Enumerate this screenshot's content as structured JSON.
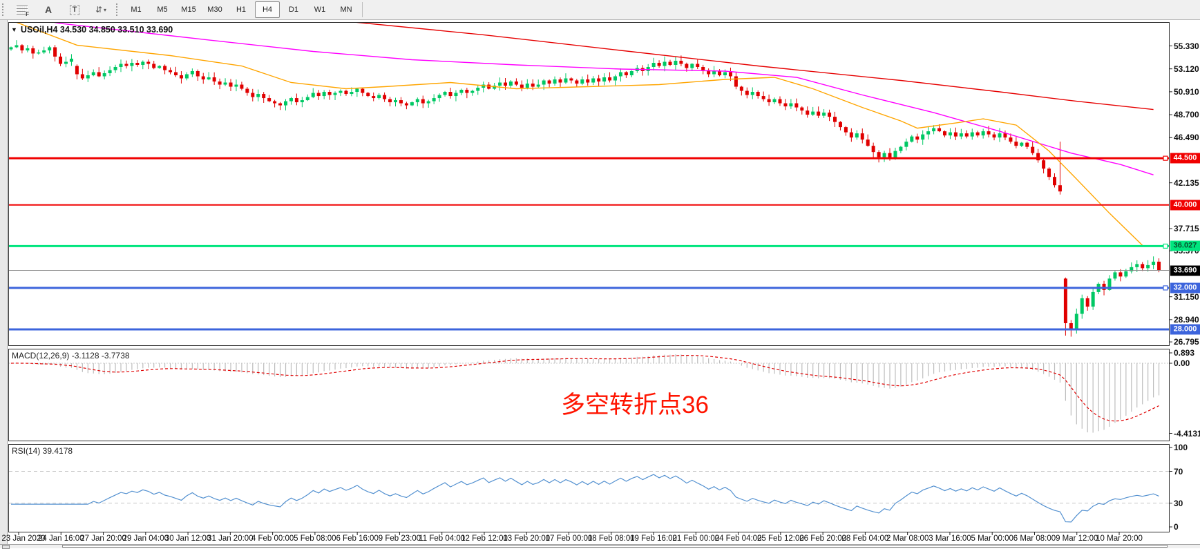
{
  "toolbar": {
    "icons": [
      {
        "name": "templates-grid-icon",
        "type": "grid",
        "label": "F"
      },
      {
        "name": "font-tool-icon",
        "type": "letter",
        "label": "A"
      },
      {
        "name": "text-tool-icon",
        "type": "boxed",
        "label": "T"
      },
      {
        "name": "arrange-windows-icon",
        "type": "arrows",
        "label": "⇵"
      }
    ],
    "timeframes": [
      "M1",
      "M5",
      "M15",
      "M30",
      "H1",
      "H4",
      "D1",
      "W1",
      "MN"
    ],
    "active_timeframe": "H4"
  },
  "chart_data": {
    "type": "candlestick+indicators",
    "symbol": "USOil",
    "timeframe": "H4",
    "title": "USOil,H4   34.530 34.850 33.510 33.690",
    "ohlc_display": {
      "open": "34.530",
      "high": "34.850",
      "low": "33.510",
      "close": "33.690"
    },
    "annotation": {
      "text": "多空转折点36",
      "color": "#ff1400"
    },
    "colors": {
      "up": "#00c864",
      "down": "#e00000",
      "ma_red": "#e60000",
      "ma_magenta": "#ff00ff",
      "ma_orange": "#ffa500",
      "line_red": "#f00000",
      "line_green": "#00e57e",
      "line_blue": "#3c64dc",
      "rsi_line": "#5290d0",
      "macd_hist": "#bdbdbd",
      "macd_signal": "#e00000",
      "current_price_bg": "#000000"
    },
    "price_axis": {
      "ticks": [
        {
          "label": "55.330",
          "value": 55.33
        },
        {
          "label": "53.120",
          "value": 53.12
        },
        {
          "label": "50.910",
          "value": 50.91
        },
        {
          "label": "48.700",
          "value": 48.7
        },
        {
          "label": "46.490",
          "value": 46.49
        },
        {
          "label": "42.135",
          "value": 42.135
        },
        {
          "label": "37.715",
          "value": 37.715
        },
        {
          "label": "35.570",
          "value": 35.57
        },
        {
          "label": "31.150",
          "value": 31.15
        },
        {
          "label": "28.940",
          "value": 28.94
        },
        {
          "label": "26.795",
          "value": 26.795
        }
      ]
    },
    "horizontal_lines": [
      {
        "label": "44.500",
        "value": 44.5,
        "color": "#f00000",
        "text": "#ffffff",
        "width": 3,
        "handle": true
      },
      {
        "label": "40.000",
        "value": 40.0,
        "color": "#f00000",
        "text": "#ffffff",
        "width": 2,
        "handle": false
      },
      {
        "label": "36.027",
        "value": 36.027,
        "color": "#00e57e",
        "text": "#0a4d2e",
        "width": 3,
        "handle": true
      },
      {
        "label": "32.000",
        "value": 32.0,
        "color": "#3c64dc",
        "text": "#ffffff",
        "width": 3,
        "handle": true
      },
      {
        "label": "28.000",
        "value": 28.0,
        "color": "#3c64dc",
        "text": "#ffffff",
        "width": 3,
        "handle": false
      }
    ],
    "current_price": {
      "label": "33.690",
      "value": 33.69
    },
    "closes": [
      55.2,
      55.4,
      54.9,
      55.1,
      54.6,
      54.7,
      54.9,
      55.2,
      54.3,
      53.6,
      53.8,
      54.1,
      52.6,
      52.2,
      52.5,
      52.8,
      52.4,
      52.7,
      53.0,
      53.3,
      53.6,
      53.4,
      53.7,
      53.5,
      53.8,
      53.6,
      53.2,
      53.4,
      53.0,
      52.8,
      52.5,
      52.2,
      52.6,
      52.9,
      52.4,
      52.1,
      52.3,
      51.9,
      51.6,
      51.8,
      51.4,
      51.6,
      51.2,
      50.8,
      50.4,
      50.7,
      50.3,
      50.0,
      49.8,
      49.6,
      50.0,
      50.3,
      49.9,
      50.1,
      50.4,
      50.8,
      50.5,
      50.9,
      50.6,
      50.8,
      51.0,
      50.7,
      50.9,
      51.2,
      50.8,
      50.5,
      50.3,
      50.6,
      50.2,
      49.9,
      50.1,
      49.8,
      49.6,
      49.9,
      50.2,
      49.8,
      50.0,
      50.3,
      50.6,
      50.9,
      50.5,
      50.8,
      51.1,
      50.8,
      51.0,
      51.3,
      51.6,
      51.2,
      51.5,
      51.8,
      51.5,
      51.9,
      51.6,
      51.3,
      51.7,
      51.4,
      51.6,
      52.0,
      51.7,
      52.1,
      51.8,
      52.2,
      52.0,
      51.7,
      52.1,
      51.8,
      52.2,
      51.9,
      52.3,
      52.0,
      52.4,
      52.8,
      52.5,
      52.9,
      53.2,
      52.9,
      53.3,
      53.7,
      53.4,
      53.8,
      53.5,
      53.9,
      53.6,
      53.2,
      53.6,
      53.3,
      53.0,
      52.6,
      52.9,
      52.5,
      52.8,
      52.4,
      51.4,
      51.0,
      50.6,
      50.9,
      50.5,
      50.2,
      49.9,
      50.2,
      49.8,
      49.5,
      49.8,
      49.4,
      49.1,
      48.7,
      49.0,
      48.6,
      48.9,
      48.5,
      48.0,
      47.5,
      47.0,
      46.5,
      46.9,
      46.3,
      45.7,
      45.1,
      44.6,
      45.0,
      44.5,
      45.2,
      45.6,
      46.1,
      46.6,
      46.3,
      46.8,
      47.1,
      47.4,
      47.1,
      46.7,
      47.0,
      46.6,
      46.9,
      46.6,
      47.0,
      46.7,
      47.1,
      46.8,
      46.5,
      46.9,
      46.5,
      46.1,
      45.7,
      46.0,
      45.6,
      45.0,
      44.3,
      43.5,
      42.7,
      41.9,
      41.3,
      28.6,
      27.9,
      29.5,
      31.0,
      30.2,
      31.6,
      32.4,
      31.8,
      32.9,
      33.5,
      33.1,
      33.6,
      34.0,
      34.3,
      33.9,
      34.2,
      34.53,
      33.69
    ],
    "last_ohlc": [
      34.53,
      34.85,
      33.51,
      33.69
    ],
    "open_overrides": {
      "0": 55.0,
      "12": 53.4,
      "192": 32.9
    },
    "wick_overrides": {
      "191": [
        46.1,
        41.0
      ],
      "192": [
        33.0,
        27.4
      ],
      "193": [
        28.9,
        27.3
      ]
    },
    "ma_lines": [
      {
        "name": "ma-slow-red",
        "color": "#e60000",
        "points": [
          [
            40,
            59.0
          ],
          [
            63,
            57.6
          ],
          [
            86,
            56.4
          ],
          [
            111,
            54.9
          ],
          [
            136,
            53.4
          ],
          [
            162,
            52.0
          ],
          [
            180,
            50.9
          ],
          [
            194,
            50.0
          ],
          [
            208,
            49.2
          ]
        ]
      },
      {
        "name": "ma-mid-magenta",
        "color": "#ff00ff",
        "points": [
          [
            0,
            58.3
          ],
          [
            9,
            57.5
          ],
          [
            36,
            55.9
          ],
          [
            55,
            54.8
          ],
          [
            73,
            54.0
          ],
          [
            92,
            53.5
          ],
          [
            111,
            53.1
          ],
          [
            130,
            52.9
          ],
          [
            143,
            52.3
          ],
          [
            155,
            50.6
          ],
          [
            168,
            48.9
          ],
          [
            180,
            47.1
          ],
          [
            193,
            45.0
          ],
          [
            202,
            43.9
          ],
          [
            208,
            42.9
          ]
        ]
      },
      {
        "name": "ma-fast-orange",
        "color": "#ffa500",
        "points": [
          [
            0,
            57.8
          ],
          [
            12,
            55.4
          ],
          [
            29,
            54.4
          ],
          [
            42,
            53.4
          ],
          [
            51,
            51.8
          ],
          [
            61,
            51.2
          ],
          [
            68,
            51.4
          ],
          [
            80,
            51.8
          ],
          [
            92,
            51.2
          ],
          [
            105,
            51.4
          ],
          [
            118,
            51.6
          ],
          [
            130,
            52.1
          ],
          [
            139,
            52.3
          ],
          [
            146,
            51.2
          ],
          [
            155,
            49.4
          ],
          [
            162,
            48.1
          ],
          [
            165,
            47.4
          ],
          [
            172,
            47.9
          ],
          [
            177,
            48.3
          ],
          [
            183,
            47.7
          ],
          [
            189,
            45.2
          ],
          [
            194,
            42.5
          ],
          [
            200,
            39.2
          ],
          [
            206,
            36.1
          ]
        ]
      }
    ],
    "macd": {
      "label": "MACD(12,26,9) -3.1128 -3.7738",
      "fast": 12,
      "slow": 26,
      "signal": 9,
      "axis_labels": [
        {
          "label": "0.893",
          "value": 0.893
        },
        {
          "label": "0.00",
          "value": 0
        },
        {
          "label": "-4.4131",
          "value": -4.4131
        }
      ]
    },
    "rsi": {
      "label": "RSI(14) 39.4178",
      "period": 14,
      "levels": [
        70,
        30
      ],
      "axis_labels": [
        {
          "label": "100",
          "value": 100
        },
        {
          "label": "70",
          "value": 70
        },
        {
          "label": "30",
          "value": 30
        },
        {
          "label": "0",
          "value": 0
        }
      ]
    },
    "date_labels": [
      "23 Jan 2020",
      "24 Jan 16:00",
      "27 Jan 20:00",
      "29 Jan 04:00",
      "30 Jan 12:00",
      "31 Jan 20:00",
      "4 Feb 00:00",
      "5 Feb 08:00",
      "6 Feb 16:00",
      "9 Feb 23:00",
      "11 Feb 04:00",
      "12 Feb 12:00",
      "13 Feb 20:00",
      "17 Feb 00:00",
      "18 Feb 08:00",
      "19 Feb 16:00",
      "21 Feb 00:00",
      "24 Feb 04:00",
      "25 Feb 12:00",
      "26 Feb 20:00",
      "28 Feb 04:00",
      "2 Mar 08:00",
      "3 Mar 16:00",
      "5 Mar 00:00",
      "6 Mar 08:00",
      "9 Mar 12:00",
      "10 Mar 20:00"
    ]
  }
}
